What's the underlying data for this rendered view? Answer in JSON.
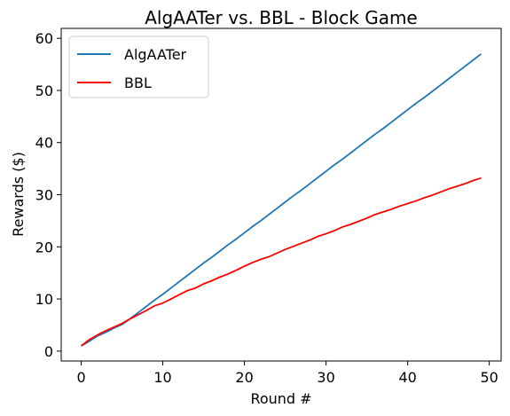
{
  "chart_data": {
    "type": "line",
    "title": "AlgAATer vs. BBL - Block Game",
    "xlabel": "Round #",
    "ylabel": "Rewards ($)",
    "xlim": [
      -2.45,
      51.45
    ],
    "ylim": [
      -1.9,
      61.9
    ],
    "xticks": [
      0,
      10,
      20,
      30,
      40,
      50
    ],
    "yticks": [
      0,
      10,
      20,
      30,
      40,
      50,
      60
    ],
    "grid": false,
    "legend_position": "top-left",
    "x": [
      0,
      1,
      2,
      3,
      4,
      5,
      6,
      7,
      8,
      9,
      10,
      11,
      12,
      13,
      14,
      15,
      16,
      17,
      18,
      19,
      20,
      21,
      22,
      23,
      24,
      25,
      26,
      27,
      28,
      29,
      30,
      31,
      32,
      33,
      34,
      35,
      36,
      37,
      38,
      39,
      40,
      41,
      42,
      43,
      44,
      45,
      46,
      47,
      48,
      49
    ],
    "series": [
      {
        "name": "AlgAATer",
        "color": "#1f77b4",
        "values": [
          1.0,
          1.9,
          2.9,
          3.6,
          4.4,
          5.1,
          6.2,
          7.4,
          8.6,
          9.8,
          10.9,
          12.1,
          13.3,
          14.5,
          15.7,
          16.9,
          18.0,
          19.2,
          20.4,
          21.5,
          22.7,
          23.9,
          25.0,
          26.2,
          27.4,
          28.6,
          29.8,
          30.9,
          32.1,
          33.3,
          34.5,
          35.7,
          36.8,
          38.0,
          39.2,
          40.4,
          41.6,
          42.7,
          43.9,
          45.1,
          46.3,
          47.5,
          48.6,
          49.8,
          51.0,
          52.2,
          53.4,
          54.6,
          55.8,
          57.0
        ]
      },
      {
        "name": "BBL",
        "color": "#ff0000",
        "values": [
          1.0,
          2.2,
          3.1,
          3.9,
          4.6,
          5.3,
          6.2,
          7.0,
          7.8,
          8.7,
          9.2,
          10.0,
          10.8,
          11.6,
          12.1,
          12.9,
          13.5,
          14.2,
          14.8,
          15.5,
          16.3,
          17.0,
          17.6,
          18.1,
          18.8,
          19.5,
          20.1,
          20.7,
          21.3,
          22.0,
          22.5,
          23.1,
          23.8,
          24.3,
          24.9,
          25.5,
          26.2,
          26.7,
          27.2,
          27.8,
          28.3,
          28.8,
          29.4,
          29.9,
          30.5,
          31.1,
          31.6,
          32.1,
          32.7,
          33.2
        ]
      }
    ]
  }
}
